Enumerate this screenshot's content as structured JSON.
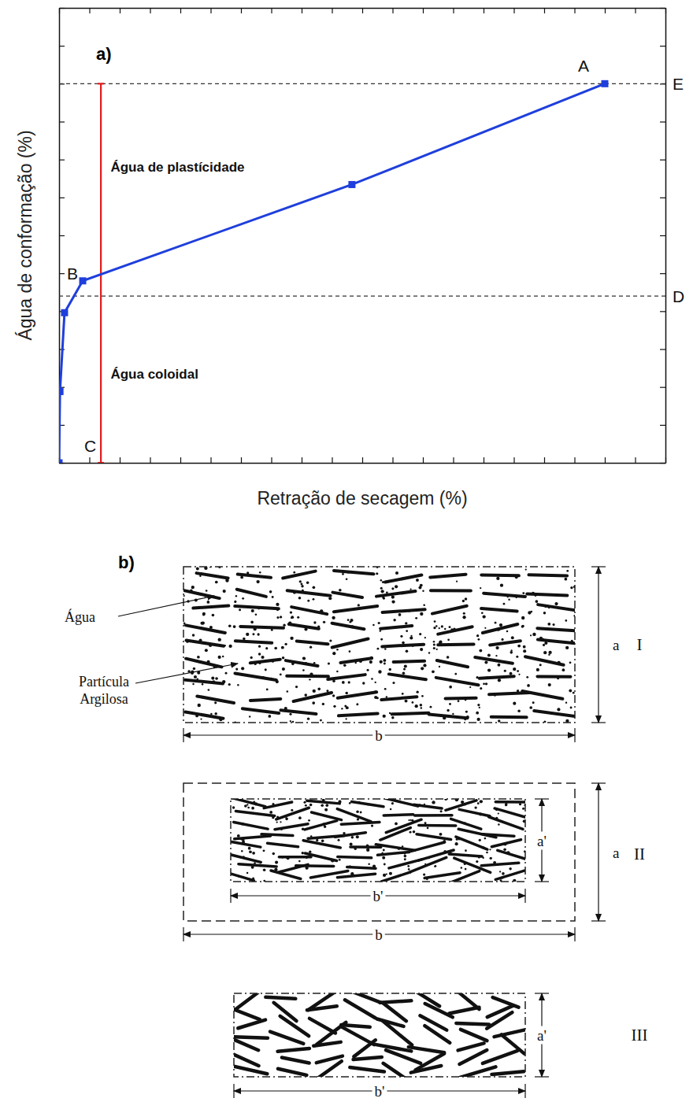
{
  "chart_data": {
    "type": "line",
    "title": "a)",
    "x_label": "Retração de secagem (%)",
    "y_label": "Água de conformação (%)",
    "x": [
      0,
      0.03,
      0.18,
      0.78,
      9.66,
      18.0
    ],
    "series": [
      {
        "color": "#1f3fdc",
        "marker": "square",
        "values": [
          0,
          0.94,
          1.98,
          2.4,
          3.67,
          5.0
        ]
      }
    ],
    "xlim": [
      0,
      20
    ],
    "ylim": [
      0,
      6
    ],
    "xticks": [
      0,
      1,
      2,
      3,
      4,
      5,
      6,
      7,
      8,
      9,
      10,
      11,
      12,
      13,
      14,
      15,
      16,
      17,
      18,
      19,
      20
    ],
    "yticks": [
      0,
      0.5,
      1,
      1.5,
      2,
      2.5,
      3,
      3.5,
      4,
      4.5,
      5,
      5.5,
      6
    ],
    "tick_labels": false,
    "hlines": [
      {
        "value": 5.0,
        "label": "E",
        "line_style": "dashed"
      },
      {
        "value": 2.2,
        "label": "D",
        "line_style": "dashed"
      }
    ],
    "vlines": [
      {
        "value": 1.38,
        "from": 0,
        "to": 5.0,
        "label": "C",
        "color": "#e31a1c"
      }
    ],
    "annotations": [
      {
        "text": "A",
        "x": 17.3,
        "y": 5.24
      },
      {
        "text": "B",
        "x": 0.44,
        "y": 2.5
      },
      {
        "text": "Água de plastícidade",
        "x": 1.7,
        "y": 3.9
      },
      {
        "text": "Água coloidal",
        "x": 1.7,
        "y": 1.17
      }
    ]
  },
  "diagram": {
    "label": "b)",
    "callouts": [
      "Água",
      "Partícula Argilosa"
    ],
    "panels": [
      {
        "label": "I",
        "height_label": "a",
        "width_label": "b"
      },
      {
        "label": "II",
        "height_label": "a'",
        "width_label": "b'",
        "outer_height_label": "a",
        "outer_width_label": "b"
      },
      {
        "label": "III",
        "height_label": "a'",
        "width_label": "b'"
      }
    ]
  }
}
